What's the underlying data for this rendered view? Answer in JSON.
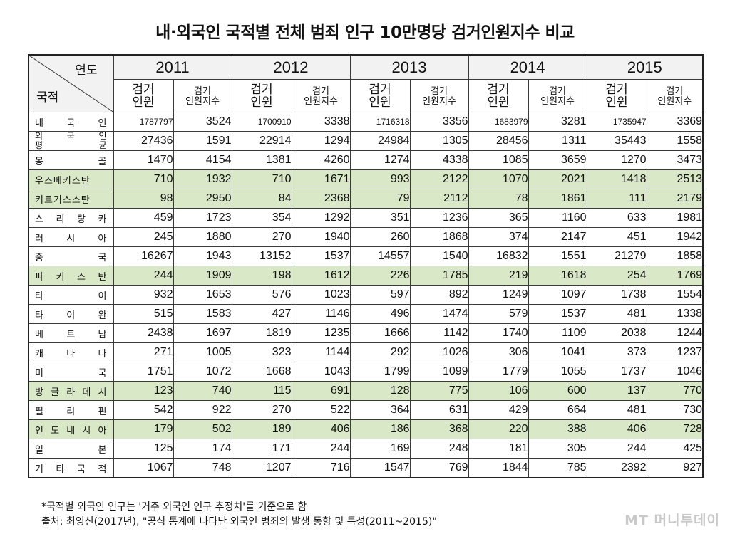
{
  "title": "내·외국인 국적별 전체 범죄 인구 10만명당 검거인원지수 비교",
  "header": {
    "corner_year": "연도",
    "corner_country": "국적",
    "years": [
      "2011",
      "2012",
      "2013",
      "2014",
      "2015"
    ],
    "sub_count": "검거\n인원",
    "sub_index": "검거\n인원지수"
  },
  "rows": [
    {
      "country": "내 국 인",
      "highlight": false,
      "small": true,
      "values": [
        "1787797",
        "3524",
        "1700910",
        "3338",
        "1716318",
        "3356",
        "1683979",
        "3281",
        "1735947",
        "3369"
      ]
    },
    {
      "country": "외 국 인\n평 균",
      "highlight": false,
      "small": false,
      "values": [
        "27436",
        "1591",
        "22914",
        "1294",
        "24984",
        "1305",
        "28456",
        "1311",
        "35443",
        "1558"
      ]
    },
    {
      "country": "몽 골",
      "highlight": false,
      "small": false,
      "values": [
        "1470",
        "4154",
        "1381",
        "4260",
        "1274",
        "4338",
        "1085",
        "3659",
        "1270",
        "3473"
      ]
    },
    {
      "country": "우즈베키스탄",
      "highlight": true,
      "small": false,
      "values": [
        "710",
        "1932",
        "710",
        "1671",
        "993",
        "2122",
        "1070",
        "2021",
        "1418",
        "2513"
      ]
    },
    {
      "country": "키르기스스탄",
      "highlight": true,
      "small": false,
      "values": [
        "98",
        "2950",
        "84",
        "2368",
        "79",
        "2112",
        "78",
        "1861",
        "111",
        "2179"
      ]
    },
    {
      "country": "스 리 랑 카",
      "highlight": false,
      "small": false,
      "values": [
        "459",
        "1723",
        "354",
        "1292",
        "351",
        "1236",
        "365",
        "1160",
        "633",
        "1981"
      ]
    },
    {
      "country": "러 시 아",
      "highlight": false,
      "small": false,
      "values": [
        "245",
        "1880",
        "270",
        "1940",
        "260",
        "1868",
        "374",
        "2147",
        "451",
        "1942"
      ]
    },
    {
      "country": "중 국",
      "highlight": false,
      "small": false,
      "values": [
        "16267",
        "1943",
        "13152",
        "1537",
        "14557",
        "1540",
        "16832",
        "1551",
        "21279",
        "1858"
      ]
    },
    {
      "country": "파 키 스 탄",
      "highlight": true,
      "small": false,
      "values": [
        "244",
        "1909",
        "198",
        "1612",
        "226",
        "1785",
        "219",
        "1618",
        "254",
        "1769"
      ]
    },
    {
      "country": "타 이",
      "highlight": false,
      "small": false,
      "values": [
        "932",
        "1653",
        "576",
        "1023",
        "597",
        "892",
        "1249",
        "1097",
        "1738",
        "1554"
      ]
    },
    {
      "country": "타 이 완",
      "highlight": false,
      "small": false,
      "values": [
        "515",
        "1583",
        "427",
        "1146",
        "496",
        "1474",
        "579",
        "1537",
        "481",
        "1338"
      ]
    },
    {
      "country": "베 트 남",
      "highlight": false,
      "small": false,
      "values": [
        "2438",
        "1697",
        "1819",
        "1235",
        "1666",
        "1142",
        "1740",
        "1109",
        "2038",
        "1244"
      ]
    },
    {
      "country": "캐 나 다",
      "highlight": false,
      "small": false,
      "values": [
        "271",
        "1005",
        "323",
        "1144",
        "292",
        "1026",
        "306",
        "1041",
        "373",
        "1237"
      ]
    },
    {
      "country": "미 국",
      "highlight": false,
      "small": false,
      "values": [
        "1751",
        "1072",
        "1668",
        "1043",
        "1799",
        "1099",
        "1779",
        "1055",
        "1737",
        "1046"
      ]
    },
    {
      "country": "방 글 라 데 시",
      "highlight": true,
      "small": false,
      "values": [
        "123",
        "740",
        "115",
        "691",
        "128",
        "775",
        "106",
        "600",
        "137",
        "770"
      ]
    },
    {
      "country": "필 리 핀",
      "highlight": false,
      "small": false,
      "values": [
        "542",
        "922",
        "270",
        "522",
        "364",
        "631",
        "429",
        "664",
        "481",
        "730"
      ]
    },
    {
      "country": "인 도 네 시 아",
      "highlight": true,
      "small": false,
      "values": [
        "179",
        "502",
        "189",
        "406",
        "186",
        "368",
        "220",
        "388",
        "406",
        "728"
      ]
    },
    {
      "country": "일 본",
      "highlight": false,
      "small": false,
      "values": [
        "125",
        "174",
        "171",
        "244",
        "169",
        "248",
        "181",
        "305",
        "244",
        "425"
      ]
    },
    {
      "country": "기 타 국 적",
      "highlight": false,
      "small": false,
      "values": [
        "1067",
        "748",
        "1207",
        "716",
        "1547",
        "769",
        "1844",
        "785",
        "2392",
        "927"
      ]
    }
  ],
  "notes": {
    "note1": "*국적별 외국인 인구는 '거주 외국인 인구 추정치'를 기준으로 함",
    "note2": "출처: 최영신(2017년), \"공식 통계에 나타난 외국인 범죄의 발생 동향 및 특성(2011~2015)\""
  },
  "watermark": "MT 머니투데이",
  "colors": {
    "highlight_row": "#d9e8c6",
    "header_bg": "#f2f2f2"
  }
}
